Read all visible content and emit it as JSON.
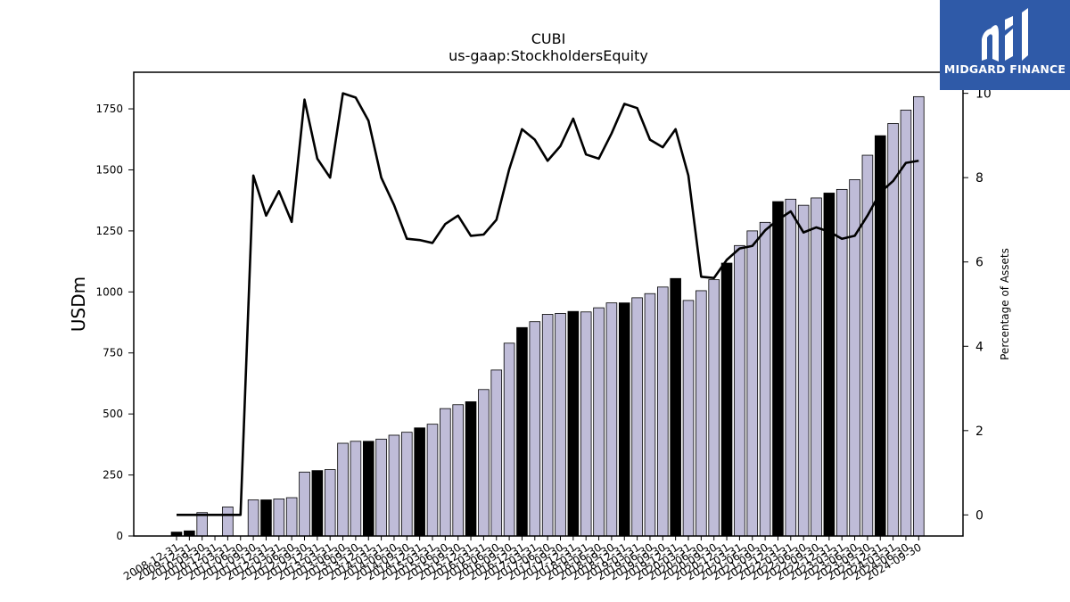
{
  "brand": {
    "name": "MIDGARD FINANCE",
    "logo_icon": "midgard-m-logo-icon",
    "background": "#2f5aa8"
  },
  "chart_data": {
    "type": "bar",
    "title": "CUBI",
    "subtitle": "us-gaap:StockholdersEquity",
    "ylabel": "USDm",
    "y2label": "Percentage of Assets",
    "ylim": [
      0,
      1900
    ],
    "y2lim": [
      -0.5,
      10.5
    ],
    "yticks": [
      0,
      250,
      500,
      750,
      1000,
      1250,
      1500,
      1750
    ],
    "y2ticks": [
      0,
      2,
      4,
      6,
      8,
      10
    ],
    "colors": {
      "bar_regular": "#bfbcd8",
      "bar_year_end": "#000000",
      "bar_edge": "#000000",
      "line": "#000000"
    },
    "categories": [
      "2008-12-31",
      "2009-12-31",
      "2010-09-30",
      "2010-12-31",
      "2011-03-31",
      "2011-06-30",
      "2011-09-30",
      "2011-12-31",
      "2012-03-31",
      "2012-06-30",
      "2012-09-30",
      "2012-12-31",
      "2013-03-31",
      "2013-06-30",
      "2013-09-30",
      "2013-12-31",
      "2014-03-31",
      "2014-06-30",
      "2014-09-30",
      "2014-12-31",
      "2015-03-31",
      "2015-06-30",
      "2015-09-30",
      "2015-12-31",
      "2016-03-31",
      "2016-06-30",
      "2016-09-30",
      "2016-12-31",
      "2017-03-31",
      "2017-06-30",
      "2017-09-30",
      "2017-12-31",
      "2018-03-31",
      "2018-06-30",
      "2018-09-30",
      "2018-12-31",
      "2019-03-31",
      "2019-06-30",
      "2019-09-30",
      "2019-12-31",
      "2020-03-31",
      "2020-06-30",
      "2020-09-30",
      "2020-12-31",
      "2021-03-31",
      "2021-06-30",
      "2021-09-30",
      "2021-12-31",
      "2022-03-31",
      "2022-06-30",
      "2022-09-30",
      "2022-12-31",
      "2023-03-31",
      "2023-06-30",
      "2023-09-30",
      "2023-12-31",
      "2024-03-31",
      "2024-06-30",
      "2024-09-30"
    ],
    "series": [
      {
        "kind": "bar",
        "values": [
          16,
          21,
          96,
          null,
          119,
          null,
          148,
          148,
          152,
          157,
          262,
          268,
          272,
          380,
          388,
          388,
          397,
          413,
          425,
          443,
          458,
          522,
          538,
          550,
          600,
          680,
          790,
          854,
          878,
          908,
          912,
          920,
          918,
          935,
          955,
          955,
          976,
          993,
          1020,
          1055,
          965,
          1005,
          1050,
          1118,
          1190,
          1250,
          1285,
          1370,
          1380,
          1355,
          1385,
          1405,
          1420,
          1460,
          1560,
          1640,
          1690,
          1745,
          1800
        ],
        "year_end": [
          true,
          true,
          false,
          false,
          false,
          false,
          false,
          true,
          false,
          false,
          false,
          true,
          false,
          false,
          false,
          true,
          false,
          false,
          false,
          true,
          false,
          false,
          false,
          true,
          false,
          false,
          false,
          true,
          false,
          false,
          false,
          true,
          false,
          false,
          false,
          true,
          false,
          false,
          false,
          true,
          false,
          false,
          false,
          true,
          false,
          false,
          false,
          true,
          false,
          false,
          false,
          true,
          false,
          false,
          false,
          true,
          false,
          false,
          false
        ]
      },
      {
        "kind": "line",
        "axis": "right",
        "values": [
          0.0,
          0.0,
          0.0,
          0.0,
          0.0,
          0.0,
          8.05,
          7.1,
          7.68,
          6.95,
          9.85,
          8.45,
          8.0,
          10.0,
          9.9,
          9.35,
          8.0,
          7.35,
          6.55,
          6.52,
          6.45,
          6.9,
          7.1,
          6.62,
          6.65,
          7.0,
          8.2,
          9.15,
          8.9,
          8.4,
          8.75,
          9.4,
          8.55,
          8.45,
          9.05,
          9.75,
          9.65,
          8.9,
          8.72,
          9.15,
          8.05,
          5.65,
          5.62,
          6.05,
          6.32,
          6.38,
          6.75,
          7.0,
          7.2,
          6.7,
          6.82,
          6.72,
          6.55,
          6.62,
          7.1,
          7.65,
          7.92,
          8.35,
          8.4
        ]
      }
    ]
  }
}
